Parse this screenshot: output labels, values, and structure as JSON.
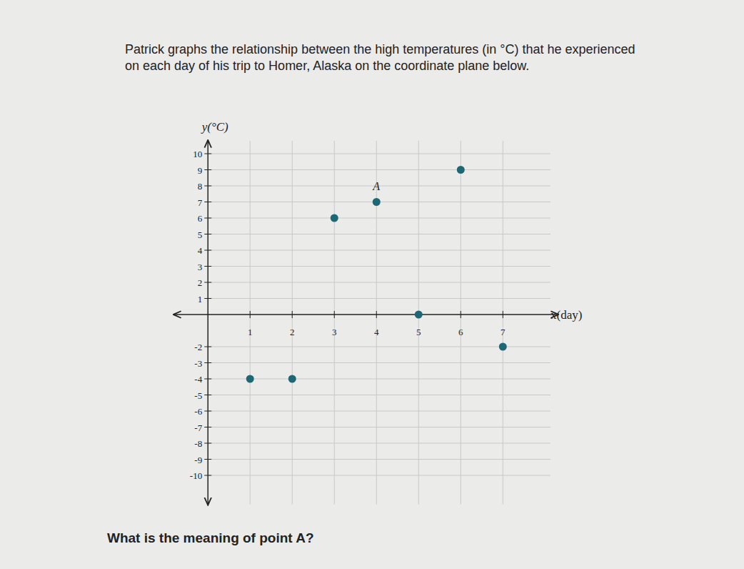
{
  "document": {
    "intro": "Patrick graphs the relationship between the high temperatures (in °C) that he experienced on each day of his trip to Homer, Alaska on the coordinate plane below.",
    "question": "What is the meaning of point A?"
  },
  "chart_data": {
    "type": "scatter",
    "x_label": "x(day)",
    "y_label": "y(°C)",
    "x": [
      1,
      2,
      3,
      4,
      5,
      6,
      7
    ],
    "values": [
      -4,
      -4,
      6,
      7,
      0,
      9,
      -2
    ],
    "color": "#1d6874",
    "marker": "circle",
    "xlim": [
      -0.8,
      8.3
    ],
    "ylim": [
      -11.8,
      10.8
    ],
    "xticks": [
      1,
      2,
      3,
      4,
      5,
      6,
      7
    ],
    "yticks": [
      -10,
      -9,
      -8,
      -7,
      -6,
      -5,
      -4,
      -3,
      -2,
      1,
      2,
      3,
      4,
      5,
      6,
      7,
      8,
      9,
      10
    ],
    "grid": true,
    "annotations": [
      {
        "text": "A",
        "x": 4,
        "y": 7
      }
    ]
  }
}
